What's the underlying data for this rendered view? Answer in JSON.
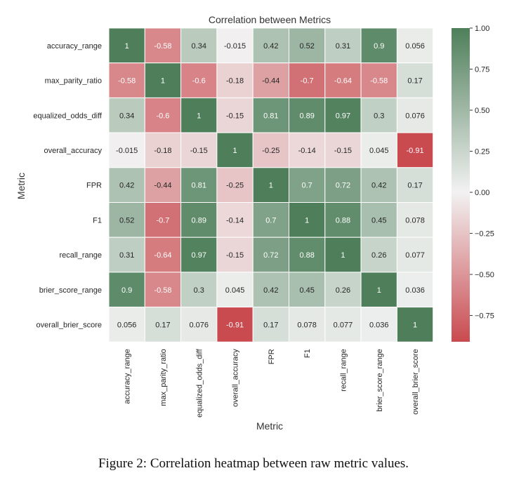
{
  "chart_data": {
    "type": "heatmap",
    "title": "Correlation between Metrics",
    "xlabel": "Metric",
    "ylabel": "Metric",
    "categories": [
      "accuracy_range",
      "max_parity_ratio",
      "equalized_odds_diff",
      "overall_accuracy",
      "FPR",
      "F1",
      "recall_range",
      "brier_score_range",
      "overall_brier_score"
    ],
    "values": [
      [
        "1",
        "-0.58",
        "0.34",
        "-0.015",
        "0.42",
        "0.52",
        "0.31",
        "0.9",
        "0.056"
      ],
      [
        "-0.58",
        "1",
        "-0.6",
        "-0.18",
        "-0.44",
        "-0.7",
        "-0.64",
        "-0.58",
        "0.17"
      ],
      [
        "0.34",
        "-0.6",
        "1",
        "-0.15",
        "0.81",
        "0.89",
        "0.97",
        "0.3",
        "0.076"
      ],
      [
        "-0.015",
        "-0.18",
        "-0.15",
        "1",
        "-0.25",
        "-0.14",
        "-0.15",
        "0.045",
        "-0.91"
      ],
      [
        "0.42",
        "-0.44",
        "0.81",
        "-0.25",
        "1",
        "0.7",
        "0.72",
        "0.42",
        "0.17"
      ],
      [
        "0.52",
        "-0.7",
        "0.89",
        "-0.14",
        "0.7",
        "1",
        "0.88",
        "0.45",
        "0.078"
      ],
      [
        "0.31",
        "-0.64",
        "0.97",
        "-0.15",
        "0.72",
        "0.88",
        "1",
        "0.26",
        "0.077"
      ],
      [
        "0.9",
        "-0.58",
        "0.3",
        "0.045",
        "0.42",
        "0.45",
        "0.26",
        "1",
        "0.036"
      ],
      [
        "0.056",
        "0.17",
        "0.076",
        "-0.91",
        "0.17",
        "0.078",
        "0.077",
        "0.036",
        "1"
      ]
    ],
    "colorbar": {
      "range": [
        -0.91,
        1.0
      ],
      "ticks": [
        "1.00",
        "0.75",
        "0.50",
        "0.25",
        "0.00",
        "−0.25",
        "−0.50",
        "−0.75"
      ],
      "tick_values": [
        1.0,
        0.75,
        0.5,
        0.25,
        0.0,
        -0.25,
        -0.5,
        -0.75
      ]
    },
    "colors": {
      "low": "#c94a4f",
      "mid": "#f2f2f2",
      "high": "#4e7f5a"
    }
  },
  "caption": "Figure 2:  Correlation heatmap between raw metric values."
}
